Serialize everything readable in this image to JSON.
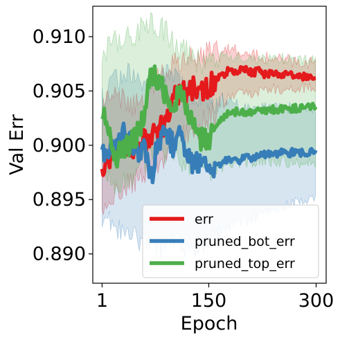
{
  "chart_data": {
    "type": "line",
    "xlabel": "Epoch",
    "ylabel": "Val Err",
    "xlim": [
      -12,
      314
    ],
    "ylim": [
      0.8873,
      0.9128
    ],
    "xticks": [
      {
        "value": 1,
        "label": "1"
      },
      {
        "value": 150,
        "label": "150"
      },
      {
        "value": 300,
        "label": "300"
      }
    ],
    "yticks": [
      {
        "value": 0.89,
        "label": "0.890"
      },
      {
        "value": 0.895,
        "label": "0.895"
      },
      {
        "value": 0.9,
        "label": "0.900"
      },
      {
        "value": 0.905,
        "label": "0.905"
      },
      {
        "value": 0.91,
        "label": "0.910"
      }
    ],
    "grid": false,
    "legend_position": "lower-right",
    "series": [
      {
        "name": "err",
        "color": "#e41a1c",
        "points": [
          [
            1,
            0.8983
          ],
          [
            10,
            0.8985
          ],
          [
            20,
            0.8995
          ],
          [
            30,
            0.9
          ],
          [
            40,
            0.8998
          ],
          [
            50,
            0.8992
          ],
          [
            60,
            0.9005
          ],
          [
            70,
            0.901
          ],
          [
            80,
            0.9015
          ],
          [
            90,
            0.902
          ],
          [
            100,
            0.904
          ],
          [
            110,
            0.905
          ],
          [
            120,
            0.9045
          ],
          [
            130,
            0.9055
          ],
          [
            140,
            0.905
          ],
          [
            150,
            0.9055
          ],
          [
            160,
            0.906
          ],
          [
            170,
            0.9065
          ],
          [
            180,
            0.907
          ],
          [
            190,
            0.9068
          ],
          [
            200,
            0.907
          ],
          [
            210,
            0.9067
          ],
          [
            220,
            0.9068
          ],
          [
            230,
            0.9065
          ],
          [
            240,
            0.9066
          ],
          [
            250,
            0.9065
          ],
          [
            260,
            0.9064
          ],
          [
            270,
            0.9065
          ],
          [
            280,
            0.9063
          ],
          [
            290,
            0.9064
          ],
          [
            300,
            0.9063
          ]
        ],
        "band": [
          [
            1,
            0.8935,
            0.9035
          ],
          [
            20,
            0.8955,
            0.9045
          ],
          [
            40,
            0.8965,
            0.9035
          ],
          [
            60,
            0.897,
            0.9045
          ],
          [
            80,
            0.898,
            0.906
          ],
          [
            100,
            0.9,
            0.9075
          ],
          [
            120,
            0.901,
            0.908
          ],
          [
            140,
            0.902,
            0.9085
          ],
          [
            160,
            0.903,
            0.9085
          ],
          [
            180,
            0.9045,
            0.909
          ],
          [
            200,
            0.9048,
            0.9085
          ],
          [
            220,
            0.905,
            0.9082
          ],
          [
            240,
            0.9052,
            0.908
          ],
          [
            260,
            0.9052,
            0.9078
          ],
          [
            280,
            0.9053,
            0.9077
          ],
          [
            300,
            0.9053,
            0.9075
          ]
        ]
      },
      {
        "name": "pruned_bot_err",
        "color": "#377eb8",
        "points": [
          [
            1,
            0.899
          ],
          [
            10,
            0.8992
          ],
          [
            20,
            0.9
          ],
          [
            30,
            0.9012
          ],
          [
            40,
            0.9008
          ],
          [
            50,
            0.8995
          ],
          [
            60,
            0.8995
          ],
          [
            70,
            0.897
          ],
          [
            80,
            0.9005
          ],
          [
            90,
            0.9012
          ],
          [
            100,
            0.9
          ],
          [
            110,
            0.901
          ],
          [
            120,
            0.899
          ],
          [
            130,
            0.898
          ],
          [
            140,
            0.899
          ],
          [
            150,
            0.8985
          ],
          [
            160,
            0.898
          ],
          [
            170,
            0.8985
          ],
          [
            180,
            0.8988
          ],
          [
            190,
            0.8985
          ],
          [
            200,
            0.899
          ],
          [
            210,
            0.8988
          ],
          [
            220,
            0.899
          ],
          [
            230,
            0.8992
          ],
          [
            240,
            0.899
          ],
          [
            250,
            0.8993
          ],
          [
            260,
            0.8992
          ],
          [
            270,
            0.8994
          ],
          [
            280,
            0.8993
          ],
          [
            290,
            0.8994
          ],
          [
            300,
            0.8994
          ]
        ],
        "band": [
          [
            1,
            0.8935,
            0.9045
          ],
          [
            20,
            0.8925,
            0.906
          ],
          [
            40,
            0.8915,
            0.9065
          ],
          [
            60,
            0.891,
            0.9055
          ],
          [
            80,
            0.8905,
            0.906
          ],
          [
            100,
            0.891,
            0.9065
          ],
          [
            120,
            0.8905,
            0.905
          ],
          [
            140,
            0.891,
            0.9045
          ],
          [
            160,
            0.8915,
            0.904
          ],
          [
            180,
            0.8925,
            0.904
          ],
          [
            200,
            0.893,
            0.9035
          ],
          [
            220,
            0.8935,
            0.9035
          ],
          [
            240,
            0.894,
            0.9035
          ],
          [
            260,
            0.8945,
            0.9035
          ],
          [
            280,
            0.8948,
            0.9035
          ],
          [
            300,
            0.895,
            0.9035
          ]
        ]
      },
      {
        "name": "pruned_top_err",
        "color": "#4daf4a",
        "points": [
          [
            1,
            0.9035
          ],
          [
            10,
            0.901
          ],
          [
            20,
            0.899
          ],
          [
            30,
            0.8995
          ],
          [
            40,
            0.9
          ],
          [
            50,
            0.901
          ],
          [
            60,
            0.903
          ],
          [
            70,
            0.9065
          ],
          [
            80,
            0.906
          ],
          [
            90,
            0.9045
          ],
          [
            100,
            0.904
          ],
          [
            110,
            0.9045
          ],
          [
            120,
            0.9035
          ],
          [
            130,
            0.9015
          ],
          [
            140,
            0.9005
          ],
          [
            150,
            0.9005
          ],
          [
            160,
            0.9015
          ],
          [
            170,
            0.9025
          ],
          [
            180,
            0.903
          ],
          [
            190,
            0.9031
          ],
          [
            200,
            0.903
          ],
          [
            210,
            0.9031
          ],
          [
            220,
            0.9032
          ],
          [
            230,
            0.9032
          ],
          [
            240,
            0.9033
          ],
          [
            250,
            0.9033
          ],
          [
            260,
            0.9033
          ],
          [
            270,
            0.9034
          ],
          [
            280,
            0.9034
          ],
          [
            290,
            0.9035
          ],
          [
            300,
            0.9035
          ]
        ],
        "band": [
          [
            1,
            0.8985,
            0.9085
          ],
          [
            20,
            0.8965,
            0.9095
          ],
          [
            40,
            0.897,
            0.91
          ],
          [
            60,
            0.8985,
            0.911
          ],
          [
            80,
            0.8995,
            0.9112
          ],
          [
            100,
            0.899,
            0.9095
          ],
          [
            120,
            0.8985,
            0.9085
          ],
          [
            140,
            0.8975,
            0.9075
          ],
          [
            160,
            0.898,
            0.908
          ],
          [
            180,
            0.8985,
            0.908
          ],
          [
            200,
            0.8985,
            0.908
          ],
          [
            220,
            0.8985,
            0.908
          ],
          [
            240,
            0.8985,
            0.908
          ],
          [
            260,
            0.8985,
            0.908
          ],
          [
            280,
            0.8985,
            0.908
          ],
          [
            300,
            0.8985,
            0.908
          ]
        ]
      }
    ]
  }
}
